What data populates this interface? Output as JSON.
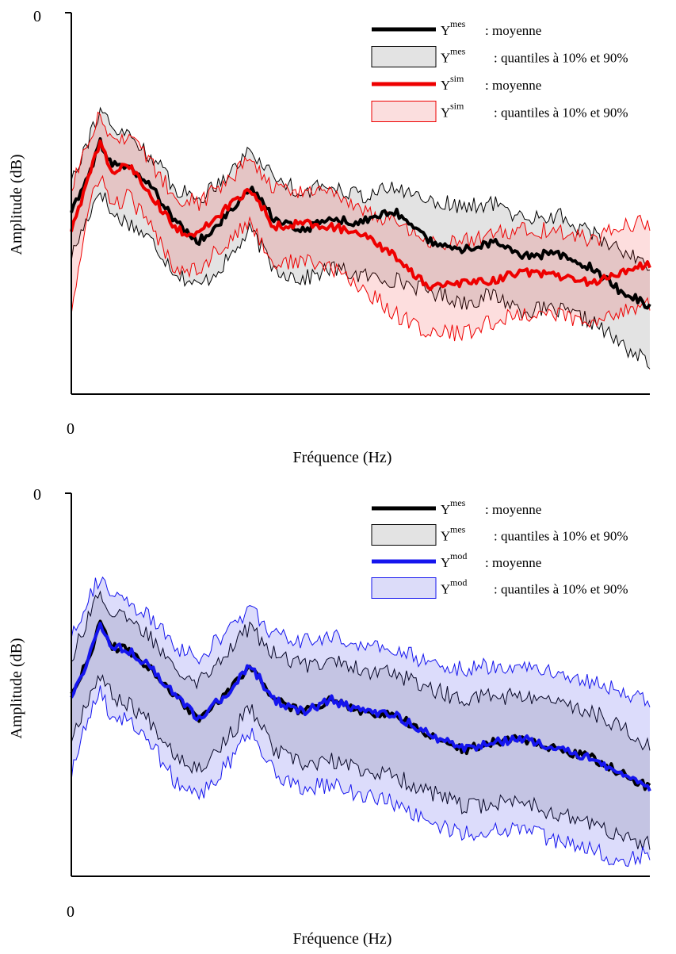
{
  "charts": [
    {
      "id": "top",
      "y_tick": "0",
      "x_tick": "0",
      "xlabel": "Fréquence (Hz)",
      "ylabel": "Amplitude (dB)",
      "legend": [
        {
          "kind": "line",
          "base": "Y",
          "sup": "mes",
          "desc": ": moyenne",
          "color": "#000000"
        },
        {
          "kind": "band",
          "base": "Y",
          "sup": "mes",
          "desc": ": quantiles à 10% et 90%",
          "color": "#000000",
          "fill": "#e3e3e3"
        },
        {
          "kind": "line",
          "base": "Y",
          "sup": "sim",
          "desc": ": moyenne",
          "color": "#ee0000"
        },
        {
          "kind": "band",
          "base": "Y",
          "sup": "sim",
          "desc": ": quantiles à 10% et 90%",
          "color": "#ee0000",
          "fill": "#fbdede"
        }
      ]
    },
    {
      "id": "bottom",
      "y_tick": "0",
      "x_tick": "0",
      "xlabel": "Fréquence (Hz)",
      "ylabel": "Amplitude (dB)",
      "legend": [
        {
          "kind": "line",
          "base": "Y",
          "sup": "mes",
          "desc": ": moyenne",
          "color": "#000000"
        },
        {
          "kind": "band",
          "base": "Y",
          "sup": "mes",
          "desc": ": quantiles à 10% et 90%",
          "color": "#000000",
          "fill": "#e3e3e3"
        },
        {
          "kind": "line",
          "base": "Y",
          "sup": "mod",
          "desc": ": moyenne",
          "color": "#1515ee"
        },
        {
          "kind": "band",
          "base": "Y",
          "sup": "mod",
          "desc": ": quantiles à 10% et 90%",
          "color": "#1515ee",
          "fill": "#dcdcf9"
        }
      ]
    }
  ],
  "chart_data": [
    {
      "type": "line",
      "xlabel": "Fréquence (Hz)",
      "ylabel": "Amplitude (dB)",
      "xlim": [
        0,
        100
      ],
      "ylim": [
        -100,
        0
      ],
      "x": [
        0,
        3,
        5,
        7,
        10,
        14,
        18,
        22,
        27,
        31,
        35,
        40,
        45,
        50,
        56,
        62,
        68,
        73,
        78,
        84,
        90,
        95,
        100
      ],
      "series": [
        {
          "name": "mes",
          "stat": "mean",
          "values": [
            -52,
            -43,
            -34,
            -40,
            -41,
            -46,
            -55,
            -60,
            -53,
            -46,
            -54,
            -57,
            -54,
            -55,
            -52,
            -60,
            -62,
            -60,
            -64,
            -63,
            -67,
            -73,
            -77
          ]
        },
        {
          "name": "mes",
          "stat": "q10",
          "values": [
            -64,
            -53,
            -46,
            -53,
            -55,
            -60,
            -68,
            -72,
            -65,
            -57,
            -67,
            -70,
            -67,
            -69,
            -70,
            -73,
            -76,
            -74,
            -78,
            -78,
            -81,
            -87,
            -92
          ]
        },
        {
          "name": "mes",
          "stat": "q90",
          "values": [
            -43,
            -33,
            -25,
            -31,
            -32,
            -38,
            -46,
            -49,
            -42,
            -36,
            -43,
            -47,
            -45,
            -48,
            -46,
            -49,
            -51,
            -50,
            -54,
            -53,
            -58,
            -62,
            -66
          ]
        },
        {
          "name": "sim",
          "stat": "mean",
          "values": [
            -57,
            -43,
            -34,
            -42,
            -40,
            -48,
            -57,
            -58,
            -51,
            -46,
            -56,
            -55,
            -56,
            -58,
            -64,
            -72,
            -71,
            -70,
            -68,
            -69,
            -71,
            -68,
            -66
          ]
        },
        {
          "name": "sim",
          "stat": "q10",
          "values": [
            -78,
            -52,
            -42,
            -51,
            -48,
            -57,
            -67,
            -67,
            -60,
            -55,
            -66,
            -65,
            -67,
            -72,
            -79,
            -84,
            -84,
            -81,
            -79,
            -79,
            -82,
            -78,
            -76
          ]
        },
        {
          "name": "sim",
          "stat": "q90",
          "values": [
            -46,
            -34,
            -26,
            -34,
            -32,
            -40,
            -48,
            -50,
            -44,
            -38,
            -46,
            -47,
            -48,
            -51,
            -55,
            -61,
            -60,
            -58,
            -57,
            -57,
            -60,
            -56,
            -55
          ]
        }
      ]
    },
    {
      "type": "line",
      "xlabel": "Fréquence (Hz)",
      "ylabel": "Amplitude (dB)",
      "xlim": [
        0,
        100
      ],
      "ylim": [
        -100,
        0
      ],
      "x": [
        0,
        3,
        5,
        7,
        10,
        14,
        18,
        22,
        27,
        31,
        35,
        40,
        45,
        50,
        56,
        62,
        68,
        73,
        78,
        84,
        90,
        95,
        100
      ],
      "series": [
        {
          "name": "mes",
          "stat": "mean",
          "values": [
            -52,
            -43,
            -34,
            -40,
            -41,
            -46,
            -53,
            -59,
            -52,
            -45,
            -54,
            -57,
            -54,
            -57,
            -58,
            -63,
            -67,
            -65,
            -64,
            -67,
            -69,
            -73,
            -77
          ]
        },
        {
          "name": "mes",
          "stat": "q10",
          "values": [
            -64,
            -53,
            -47,
            -53,
            -55,
            -60,
            -68,
            -72,
            -64,
            -56,
            -67,
            -71,
            -70,
            -72,
            -74,
            -78,
            -82,
            -81,
            -80,
            -84,
            -86,
            -90,
            -92
          ]
        },
        {
          "name": "mes",
          "stat": "q90",
          "values": [
            -43,
            -32,
            -25,
            -32,
            -33,
            -38,
            -45,
            -49,
            -41,
            -35,
            -42,
            -45,
            -43,
            -46,
            -47,
            -51,
            -54,
            -53,
            -53,
            -55,
            -57,
            -61,
            -66
          ]
        },
        {
          "name": "mod",
          "stat": "mean",
          "values": [
            -53,
            -43,
            -34,
            -40,
            -41,
            -46,
            -53,
            -59,
            -52,
            -45,
            -54,
            -57,
            -54,
            -57,
            -58,
            -63,
            -67,
            -65,
            -64,
            -67,
            -69,
            -73,
            -77
          ]
        },
        {
          "name": "mod",
          "stat": "q10",
          "values": [
            -74,
            -58,
            -52,
            -58,
            -60,
            -66,
            -75,
            -79,
            -71,
            -62,
            -73,
            -77,
            -76,
            -79,
            -81,
            -86,
            -89,
            -88,
            -87,
            -91,
            -93,
            -96,
            -94
          ]
        },
        {
          "name": "mod",
          "stat": "q90",
          "values": [
            -37,
            -27,
            -22,
            -27,
            -29,
            -33,
            -40,
            -43,
            -36,
            -30,
            -37,
            -39,
            -37,
            -40,
            -41,
            -44,
            -46,
            -45,
            -45,
            -47,
            -49,
            -52,
            -54
          ]
        }
      ]
    }
  ]
}
